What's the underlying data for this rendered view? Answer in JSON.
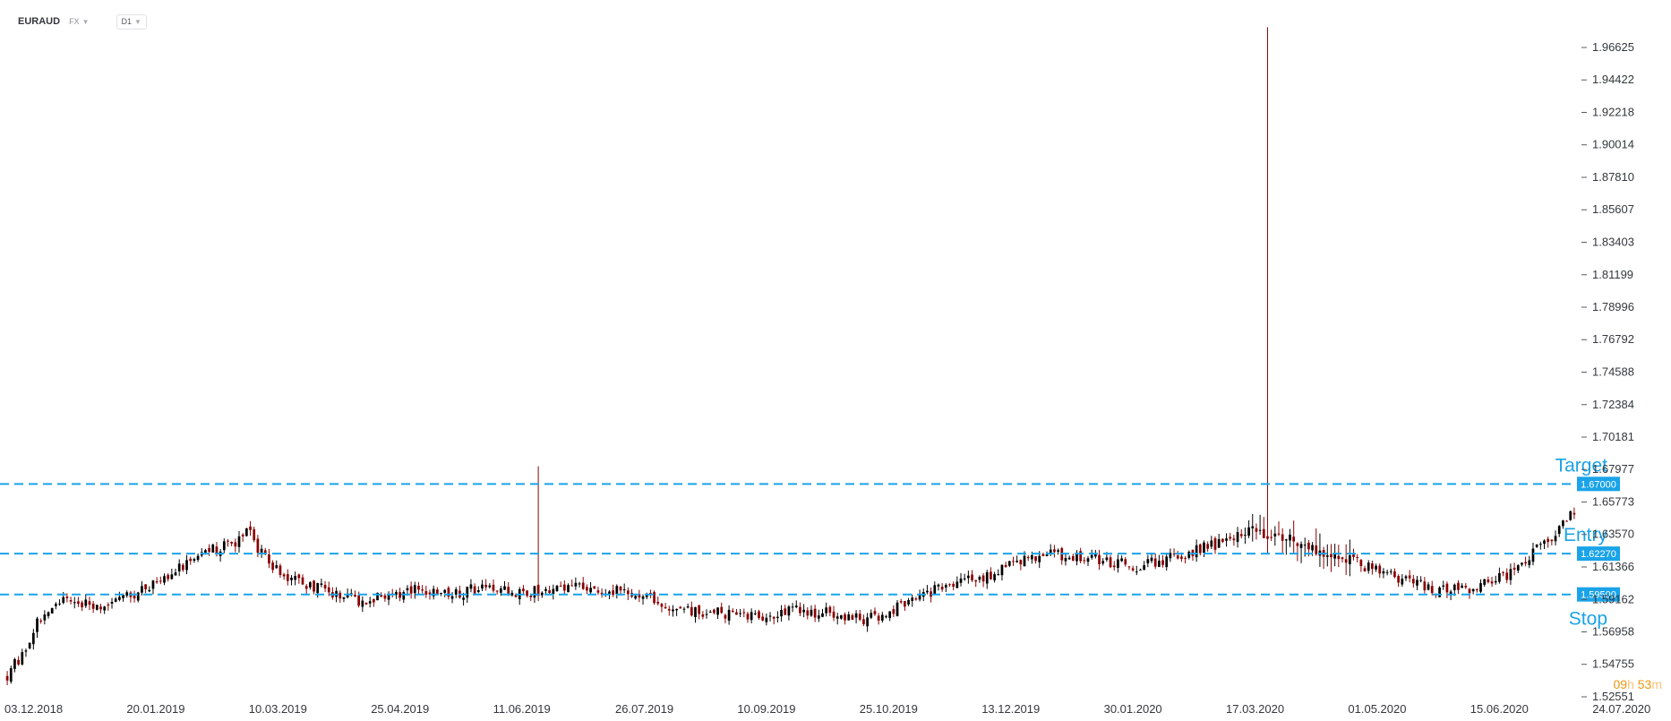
{
  "header": {
    "symbol": "EURAUD",
    "market": "FX",
    "timeframe": "D1"
  },
  "countdown": {
    "hours": "09",
    "hours_unit": "h",
    "minutes": "53",
    "minutes_unit": "m"
  },
  "colors": {
    "up": "#000000",
    "down": "#8b0000",
    "levels": "#1aa3e8",
    "text": "#33373d"
  },
  "chart_data": {
    "type": "candlestick",
    "symbol": "EURAUD",
    "timeframe": "D1",
    "ylim": [
      1.52551,
      1.96625
    ],
    "y_ticks": [
      1.96625,
      1.94422,
      1.92218,
      1.90014,
      1.8781,
      1.85607,
      1.83403,
      1.81199,
      1.78996,
      1.76792,
      1.74588,
      1.72384,
      1.70181,
      1.67977,
      1.65773,
      1.6357,
      1.61366,
      1.59162,
      1.56958,
      1.54755,
      1.52551
    ],
    "y_tick_labels": [
      "1.96625",
      "1.94422",
      "1.92218",
      "1.90014",
      "1.87810",
      "1.85607",
      "1.83403",
      "1.81199",
      "1.78996",
      "1.76792",
      "1.74588",
      "1.72384",
      "1.70181",
      "1.67977",
      "1.65773",
      "1.63570",
      "1.61366",
      "1.59162",
      "1.56958",
      "1.54755",
      "1.52551"
    ],
    "x_tick_labels": [
      "03.12.2018",
      "20.01.2019",
      "10.03.2019",
      "25.04.2019",
      "11.06.2019",
      "26.07.2019",
      "10.09.2019",
      "25.10.2019",
      "13.12.2019",
      "30.01.2020",
      "17.03.2020",
      "01.05.2020",
      "15.06.2020",
      "24.07.2020"
    ],
    "bars_count": 420,
    "levels": [
      {
        "name": "Target",
        "value": 1.67,
        "label": "1.67000"
      },
      {
        "name": "Entry",
        "value": 1.6227,
        "label": "1.62270"
      },
      {
        "name": "Stop",
        "value": 1.595,
        "label": "1.59500"
      }
    ],
    "close_path": [
      [
        0,
        1.54
      ],
      [
        4,
        1.555
      ],
      [
        8,
        1.575
      ],
      [
        14,
        1.59
      ],
      [
        25,
        1.588
      ],
      [
        35,
        1.596
      ],
      [
        45,
        1.612
      ],
      [
        55,
        1.626
      ],
      [
        60,
        1.628
      ],
      [
        64,
        1.64
      ],
      [
        66,
        1.63
      ],
      [
        70,
        1.615
      ],
      [
        78,
        1.603
      ],
      [
        85,
        1.598
      ],
      [
        95,
        1.59
      ],
      [
        108,
        1.598
      ],
      [
        118,
        1.594
      ],
      [
        128,
        1.601
      ],
      [
        138,
        1.596
      ],
      [
        150,
        1.601
      ],
      [
        160,
        1.598
      ],
      [
        170,
        1.595
      ],
      [
        180,
        1.585
      ],
      [
        190,
        1.583
      ],
      [
        200,
        1.58
      ],
      [
        210,
        1.584
      ],
      [
        220,
        1.582
      ],
      [
        230,
        1.578
      ],
      [
        240,
        1.588
      ],
      [
        250,
        1.6
      ],
      [
        262,
        1.607
      ],
      [
        272,
        1.62
      ],
      [
        282,
        1.622
      ],
      [
        292,
        1.618
      ],
      [
        302,
        1.614
      ],
      [
        312,
        1.62
      ],
      [
        322,
        1.628
      ],
      [
        332,
        1.638
      ],
      [
        342,
        1.635
      ],
      [
        352,
        1.624
      ],
      [
        362,
        1.615
      ],
      [
        372,
        1.605
      ],
      [
        382,
        1.598
      ],
      [
        392,
        1.598
      ],
      [
        402,
        1.61
      ],
      [
        412,
        1.632
      ],
      [
        420,
        1.655
      ],
      [
        430,
        1.648
      ]
    ]
  }
}
